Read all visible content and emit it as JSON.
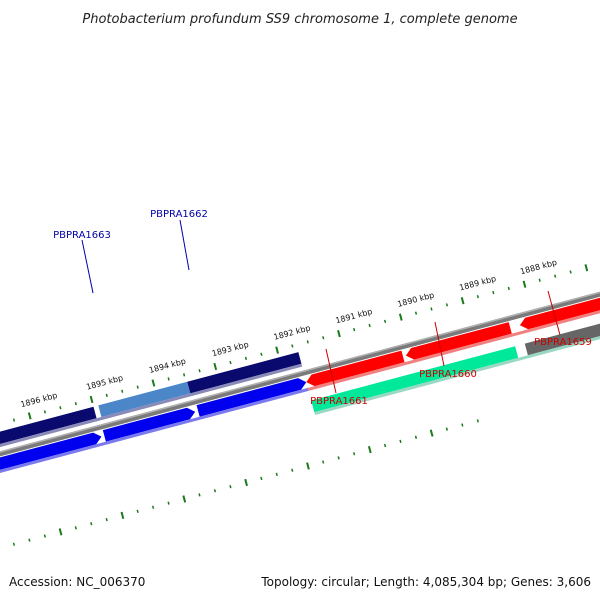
{
  "title": "Photobacterium profundum SS9 chromosome 1, complete genome",
  "footer": {
    "accession": "Accession: NC_006370",
    "summary": "Topology: circular; Length: 4,085,304 bp; Genes: 3,606"
  },
  "scale": {
    "labels": [
      "1888 kbp",
      "1889 kbp",
      "1890 kbp",
      "1891 kbp",
      "1892 kbp",
      "1893 kbp",
      "1894 kbp",
      "1895 kbp",
      "1896 kbp"
    ]
  },
  "genes": [
    {
      "name": "PBPRA1659",
      "color": "#cc0000"
    },
    {
      "name": "PBPRA1660",
      "color": "#cc0000"
    },
    {
      "name": "PBPRA1661",
      "color": "#cc0000"
    },
    {
      "name": "PBPRA1662",
      "color": "#0000aa"
    },
    {
      "name": "PBPRA1663",
      "color": "#0000aa"
    }
  ],
  "colors": {
    "backbone": "#777777",
    "ticks": "#1a7a1a",
    "forward_red": "#ff0000",
    "forward_teal": "#00e89a",
    "forward_gray": "#666666",
    "reverse_navy": "#0a0a6e",
    "reverse_blue": "#0000ee",
    "reverse_steel": "#4a86c8"
  }
}
